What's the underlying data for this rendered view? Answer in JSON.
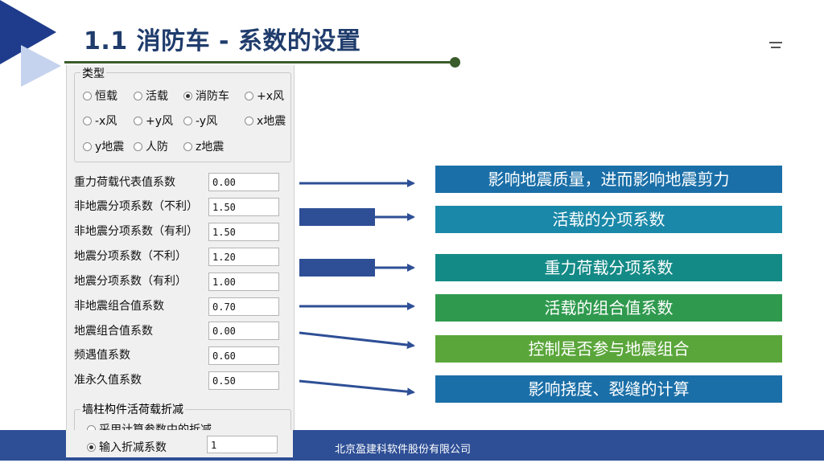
{
  "slide": {
    "title": "1.1  消防车 - 系数的设置",
    "footer": "北京盈建科软件股份有限公司"
  },
  "dialog": {
    "type_group": {
      "title": "类型",
      "options": [
        {
          "label": "恒载",
          "selected": false
        },
        {
          "label": "活载",
          "selected": false
        },
        {
          "label": "消防车",
          "selected": true
        },
        {
          "label": "+x风",
          "selected": false
        },
        {
          "label": "-x风",
          "selected": false
        },
        {
          "label": "+y风",
          "selected": false
        },
        {
          "label": "-y风",
          "selected": false
        },
        {
          "label": "x地震",
          "selected": false
        },
        {
          "label": "y地震",
          "selected": false
        },
        {
          "label": "人防",
          "selected": false
        },
        {
          "label": "z地震",
          "selected": false
        }
      ]
    },
    "fields": [
      {
        "label": "重力荷载代表值系数",
        "value": "0.00"
      },
      {
        "label": "非地震分项系数（不利）",
        "value": "1.50"
      },
      {
        "label": "非地震分项系数（有利）",
        "value": "1.50"
      },
      {
        "label": "地震分项系数（不利）",
        "value": "1.20"
      },
      {
        "label": "地震分项系数（有利）",
        "value": "1.00"
      },
      {
        "label": "非地震组合值系数",
        "value": "0.70"
      },
      {
        "label": "地震组合值系数",
        "value": "0.00"
      },
      {
        "label": "频遇值系数",
        "value": "0.60"
      },
      {
        "label": "准永久值系数",
        "value": "0.50"
      }
    ],
    "reduction_group": {
      "title": "墙柱构件活荷载折减",
      "option_calc": "采用计算参数中的折减",
      "option_input": "输入折减系数",
      "input_value": "1",
      "selected": "option_input"
    }
  },
  "annotations": [
    {
      "text": "影响地震质量，进而影响地震剪力",
      "color": "#1a6fa8"
    },
    {
      "text": "活载的分项系数",
      "color": "#1a88a8"
    },
    {
      "text": "重力荷载分项系数",
      "color": "#138a86"
    },
    {
      "text": "活载的组合值系数",
      "color": "#2f9a4e"
    },
    {
      "text": "控制是否参与地震组合",
      "color": "#5aa63a"
    },
    {
      "text": "影响挠度、裂缝的计算",
      "color": "#1a6fa8"
    }
  ],
  "colors": {
    "arrow": "#2e4f96",
    "footer": "#2e4f96",
    "title": "#1f3c6c"
  }
}
